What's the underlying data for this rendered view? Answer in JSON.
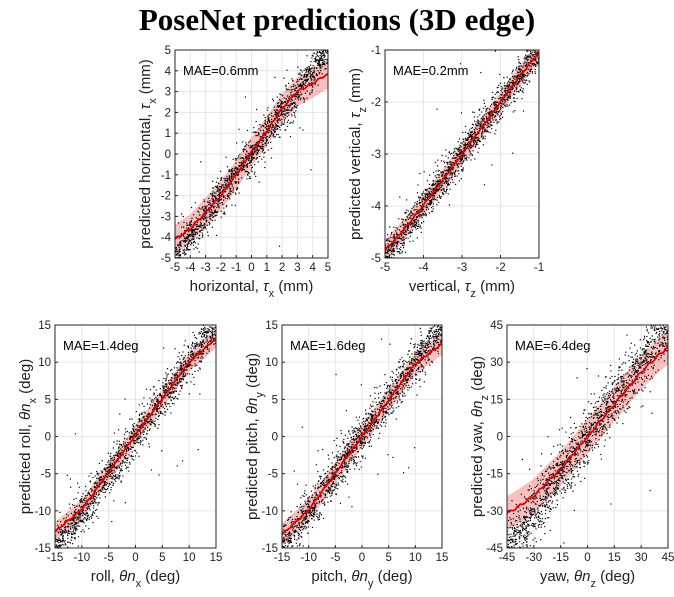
{
  "title": "PoseNet predictions (3D edge)",
  "colors": {
    "points": "#000000",
    "mean_line": "#e00000",
    "band": "#f28a8a",
    "grid": "#e6e6e6",
    "axis": "#262626"
  },
  "chart_data": [
    {
      "id": "tau_x",
      "type": "scatter",
      "xlabel": "horizontal, τx (mm)",
      "ylabel": "predicted horizontal, τx (mm)",
      "xlabel_parts": [
        "horizontal, ",
        "τ",
        "x",
        " (mm)"
      ],
      "ylabel_parts": [
        "predicted horizontal, ",
        "τ",
        "x",
        " (mm)"
      ],
      "annotation": "MAE=0.6mm",
      "xlim": [
        -5,
        5
      ],
      "ylim": [
        -5,
        5
      ],
      "xticks": [
        "-5",
        "-4",
        "-3",
        "-2",
        "-1",
        "0",
        "1",
        "2",
        "3",
        "4",
        "5"
      ],
      "yticks": [
        "-5",
        "-4",
        "-3",
        "-2",
        "-1",
        "0",
        "1",
        "2",
        "3",
        "4",
        "5"
      ],
      "grid": true,
      "series": [
        {
          "kind": "mean_curve",
          "x": [
            -5,
            -4,
            -3,
            -2,
            -1,
            0,
            1,
            2,
            3,
            4,
            4.85
          ],
          "y": [
            -4.1,
            -3.6,
            -2.8,
            -2.0,
            -1.0,
            0.1,
            1.1,
            2.2,
            3.0,
            3.4,
            3.8
          ]
        },
        {
          "kind": "spread_band",
          "halfwidth": 0.7
        },
        {
          "kind": "scatter_points",
          "count": 1600,
          "spread": 0.45
        }
      ]
    },
    {
      "id": "tau_z",
      "type": "scatter",
      "xlabel": "vertical, τz (mm)",
      "ylabel": "predicted vertical, τz (mm)",
      "xlabel_parts": [
        "vertical, ",
        "τ",
        "z",
        " (mm)"
      ],
      "ylabel_parts": [
        "predicted vertical, ",
        "τ",
        "z",
        " (mm)"
      ],
      "annotation": "MAE=0.2mm",
      "xlim": [
        -5,
        -1
      ],
      "ylim": [
        -5,
        -1
      ],
      "xticks": [
        "-5",
        "-4",
        "-3",
        "-2",
        "-1"
      ],
      "yticks": [
        "-5",
        "-4",
        "-3",
        "-2",
        "-1"
      ],
      "grid": true,
      "series": [
        {
          "kind": "mean_curve",
          "x": [
            -5,
            -4.5,
            -4,
            -3.5,
            -3,
            -2.5,
            -2,
            -1.5,
            -1
          ],
          "y": [
            -4.85,
            -4.45,
            -3.98,
            -3.5,
            -3.0,
            -2.5,
            -2.0,
            -1.5,
            -1.05
          ]
        },
        {
          "kind": "spread_band",
          "halfwidth": 0.2
        },
        {
          "kind": "scatter_points",
          "count": 1600,
          "spread": 0.16
        }
      ]
    },
    {
      "id": "roll",
      "type": "scatter",
      "xlabel": "roll, θnx (deg)",
      "ylabel": "predicted roll, θnx (deg)",
      "xlabel_parts": [
        "roll, ",
        "θn",
        "x",
        " (deg)"
      ],
      "ylabel_parts": [
        "predicted roll, ",
        "θn",
        "x",
        " (deg)"
      ],
      "annotation": "MAE=1.4deg",
      "xlim": [
        -15,
        15
      ],
      "ylim": [
        -15,
        15
      ],
      "xticks": [
        "-15",
        "-10",
        "-5",
        "0",
        "5",
        "10",
        "15"
      ],
      "yticks": [
        "-15",
        "-10",
        "-5",
        "0",
        "5",
        "10",
        "15"
      ],
      "grid": true,
      "series": [
        {
          "kind": "mean_curve",
          "x": [
            -15,
            -10,
            -5,
            0,
            5,
            10,
            15
          ],
          "y": [
            -12.8,
            -9.8,
            -4.8,
            0.2,
            5.1,
            10.0,
            13.2
          ]
        },
        {
          "kind": "spread_band",
          "halfwidth": 1.3
        },
        {
          "kind": "scatter_points",
          "count": 1600,
          "spread": 1.3
        }
      ]
    },
    {
      "id": "pitch",
      "type": "scatter",
      "xlabel": "pitch, θny (deg)",
      "ylabel": "predicted pitch, θny (deg)",
      "xlabel_parts": [
        "pitch, ",
        "θn",
        "y",
        " (deg)"
      ],
      "ylabel_parts": [
        "predicted pitch, ",
        "θn",
        "y",
        " (deg)"
      ],
      "annotation": "MAE=1.6deg",
      "xlim": [
        -15,
        15
      ],
      "ylim": [
        -15,
        15
      ],
      "xticks": [
        "-15",
        "-10",
        "-5",
        "0",
        "5",
        "10",
        "15"
      ],
      "yticks": [
        "-15",
        "-10",
        "-5",
        "0",
        "5",
        "10",
        "15"
      ],
      "grid": true,
      "series": [
        {
          "kind": "mean_curve",
          "x": [
            -15,
            -10,
            -5,
            0,
            5,
            10,
            15
          ],
          "y": [
            -13.2,
            -9.9,
            -4.9,
            0.0,
            4.9,
            9.8,
            12.5
          ]
        },
        {
          "kind": "spread_band",
          "halfwidth": 1.5
        },
        {
          "kind": "scatter_points",
          "count": 1600,
          "spread": 1.4
        }
      ]
    },
    {
      "id": "yaw",
      "type": "scatter",
      "xlabel": "yaw, θnz (deg)",
      "ylabel": "predicted yaw, θnz (deg)",
      "xlabel_parts": [
        "yaw, ",
        "θn",
        "z",
        " (deg)"
      ],
      "ylabel_parts": [
        "predicted yaw, ",
        "θn",
        "z",
        " (deg)"
      ],
      "annotation": "MAE=6.4deg",
      "xlim": [
        -45,
        45
      ],
      "ylim": [
        -45,
        45
      ],
      "xticks": [
        "-45",
        "-30",
        "-15",
        "0",
        "15",
        "30",
        "45"
      ],
      "yticks": [
        "-45",
        "-30",
        "-15",
        "0",
        "15",
        "30",
        "45"
      ],
      "grid": true,
      "series": [
        {
          "kind": "mean_curve",
          "x": [
            -45,
            -40,
            -30,
            -15,
            0,
            15,
            30,
            40,
            45
          ],
          "y": [
            -31,
            -29,
            -24,
            -13,
            0,
            13,
            26,
            33,
            36
          ]
        },
        {
          "kind": "spread_band",
          "halfwidth": 7
        },
        {
          "kind": "scatter_points",
          "count": 1600,
          "spread": 5.5
        }
      ]
    }
  ]
}
